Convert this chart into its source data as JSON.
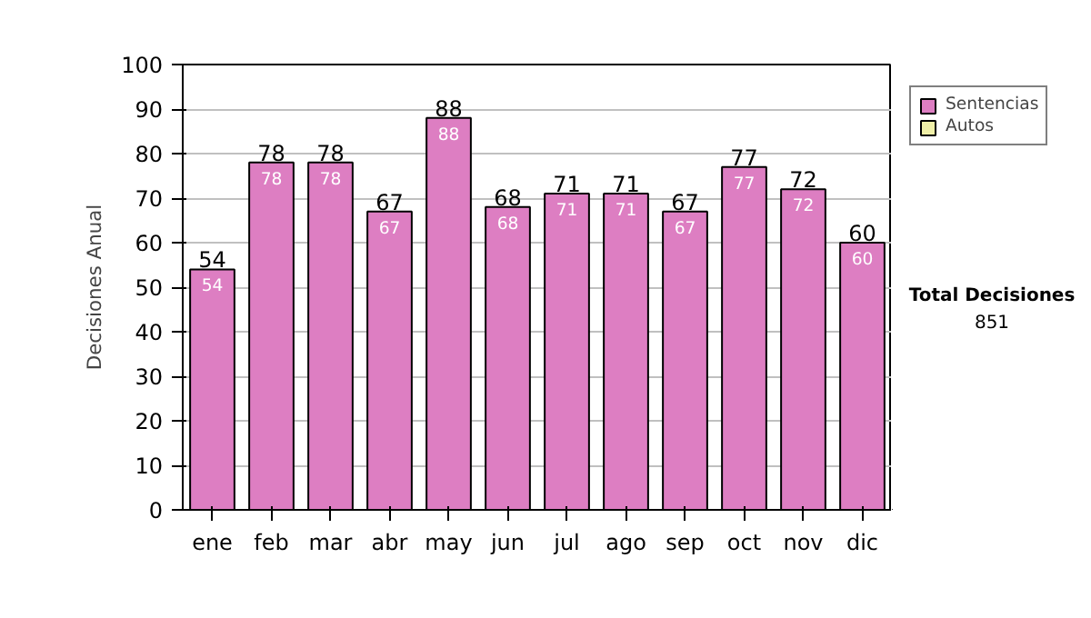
{
  "chart_data": {
    "type": "bar",
    "stacked": true,
    "ylabel": "Decisiones Anual",
    "categories": [
      "ene",
      "feb",
      "mar",
      "abr",
      "may",
      "jun",
      "jul",
      "ago",
      "sep",
      "oct",
      "nov",
      "dic"
    ],
    "series": [
      {
        "name": "Sentencias",
        "color": "#dd7ec2",
        "values": [
          54,
          78,
          78,
          67,
          88,
          68,
          71,
          71,
          67,
          77,
          72,
          60
        ]
      },
      {
        "name": "Autos",
        "color": "#f0f0a8",
        "values": [
          null,
          null,
          null,
          null,
          null,
          null,
          null,
          null,
          null,
          null,
          null,
          null
        ]
      }
    ],
    "data_labels": true,
    "totals": [
      "54",
      "78",
      "78",
      "67",
      "88",
      "68",
      "71",
      "71",
      "67",
      "77",
      "72",
      "60"
    ],
    "ylim": [
      0,
      100
    ],
    "yticks": [
      0,
      10,
      20,
      30,
      40,
      50,
      60,
      70,
      80,
      90,
      100
    ],
    "grid": "y",
    "legend": "right",
    "annotations": [
      "Total Decisiones",
      "851"
    ]
  }
}
